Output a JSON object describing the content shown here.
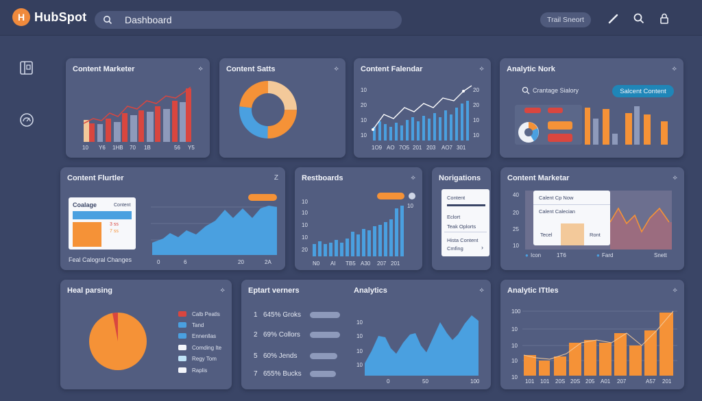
{
  "header": {
    "logo_text": "HubSpot",
    "logo_mark": "H",
    "search_value": "Dashboard",
    "trial_button": "Trail Sneort",
    "icons": [
      "pencil-icon",
      "search-icon",
      "lock-icon"
    ]
  },
  "sidebar": {
    "icons": [
      "book-icon",
      "gauge-icon"
    ]
  },
  "colors": {
    "background": "#3a4566",
    "card": "#525d80",
    "red": "#d9463f",
    "orange": "#f59237",
    "blue": "#4aa0e0",
    "peach": "#f3c99a",
    "teal": "#1f86b8"
  },
  "cards": {
    "content_marketer": {
      "title": "Content Marketer",
      "x_labels": [
        "10",
        "Y6",
        "1HB",
        "70",
        "1B",
        "56",
        "Y5"
      ]
    },
    "content_stats": {
      "title": "Content Satts"
    },
    "content_calendar": {
      "title": "Content Falendar",
      "y_left": [
        "10",
        "20",
        "10",
        "10"
      ],
      "y_right": [
        "20",
        "20",
        "10",
        "10"
      ],
      "x_labels": [
        "1O9",
        "AO",
        "7O5",
        "201",
        "203",
        "AO7",
        "301"
      ]
    },
    "analytic_nork": {
      "title": "Analytic Nork",
      "search_label": "Crantage Sialory",
      "button": "Salcent Content"
    },
    "content_flutter": {
      "title": "Content Flurtler",
      "corner": "Z",
      "panel_title": "Coalage",
      "panel_right": "Content",
      "panel_items": [
        "3 ss",
        "7 ss"
      ],
      "footer": "Feal Calogral Changes",
      "x_labels": [
        "0",
        "6",
        "20",
        "2A"
      ]
    },
    "restboards": {
      "title": "Restboards",
      "y_left": [
        "10",
        "10",
        "10",
        "10",
        "20"
      ],
      "y_right": "10",
      "x_labels": [
        "N0",
        "AI",
        "TB5",
        "A30",
        "207",
        "201"
      ]
    },
    "norigations": {
      "title": "Norigations",
      "items": [
        "Content",
        "Eclort",
        "Teak Oplorts",
        "Hista Content",
        "Cmfing"
      ]
    },
    "content_marketar2": {
      "title": "Content Marketar",
      "y_labels": [
        "40",
        "20",
        "25",
        "10",
        "10"
      ],
      "popup_items": [
        "Calent Cp Now",
        "Calent Calecian",
        "Tecel",
        "Ront"
      ],
      "legend": [
        "Icon",
        "1T6",
        "Fard",
        "Snett"
      ]
    },
    "heal_parsing": {
      "title": "Heal parsing",
      "legend": [
        "Calb Peatls",
        "Tand",
        "Ennenllas",
        "Comding Ite",
        "Regy Tom",
        "Raplis"
      ]
    },
    "eptart": {
      "title": "Eptart verners",
      "rows": [
        {
          "rank": "1",
          "text": "645% Groks"
        },
        {
          "rank": "2",
          "text": "69% Collors"
        },
        {
          "rank": "5",
          "text": "60% Jends"
        },
        {
          "rank": "7",
          "text": "655% Bucks"
        }
      ]
    },
    "analytics": {
      "title": "Analytics",
      "y_labels": [
        "10",
        "10",
        "10",
        "10"
      ],
      "x_labels": [
        "0",
        "50",
        "100"
      ]
    },
    "analytic_ittles": {
      "title": "Analytic ITtles",
      "y_labels": [
        "100",
        "10",
        "10",
        "10",
        "10"
      ],
      "x_labels": [
        "101",
        "101",
        "20S",
        "20S",
        "205",
        "A01",
        "207",
        "A57",
        "201"
      ]
    }
  }
}
